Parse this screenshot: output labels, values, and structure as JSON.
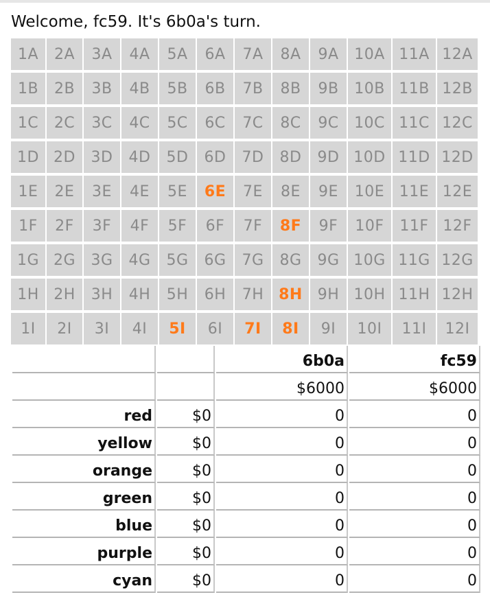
{
  "header": {
    "welcome": "Welcome, fc59. It's 6b0a's turn."
  },
  "board": {
    "rows": [
      [
        "1A",
        "2A",
        "3A",
        "4A",
        "5A",
        "6A",
        "7A",
        "8A",
        "9A",
        "10A",
        "11A",
        "12A"
      ],
      [
        "1B",
        "2B",
        "3B",
        "4B",
        "5B",
        "6B",
        "7B",
        "8B",
        "9B",
        "10B",
        "11B",
        "12B"
      ],
      [
        "1C",
        "2C",
        "3C",
        "4C",
        "5C",
        "6C",
        "7C",
        "8C",
        "9C",
        "10C",
        "11C",
        "12C"
      ],
      [
        "1D",
        "2D",
        "3D",
        "4D",
        "5D",
        "6D",
        "7D",
        "8D",
        "9D",
        "10D",
        "11D",
        "12D"
      ],
      [
        "1E",
        "2E",
        "3E",
        "4E",
        "5E",
        "6E",
        "7E",
        "8E",
        "9E",
        "10E",
        "11E",
        "12E"
      ],
      [
        "1F",
        "2F",
        "3F",
        "4F",
        "5F",
        "6F",
        "7F",
        "8F",
        "9F",
        "10F",
        "11F",
        "12F"
      ],
      [
        "1G",
        "2G",
        "3G",
        "4G",
        "5G",
        "6G",
        "7G",
        "8G",
        "9G",
        "10G",
        "11G",
        "12G"
      ],
      [
        "1H",
        "2H",
        "3H",
        "4H",
        "5H",
        "6H",
        "7H",
        "8H",
        "9H",
        "10H",
        "11H",
        "12H"
      ],
      [
        "1I",
        "2I",
        "3I",
        "4I",
        "5I",
        "6I",
        "7I",
        "8I",
        "9I",
        "10I",
        "11I",
        "12I"
      ]
    ],
    "highlighted": [
      "6E",
      "8F",
      "8H",
      "5I",
      "7I",
      "8I"
    ],
    "colors": {
      "cell_bg": "#d6d6d6",
      "cell_text": "#8a8a8a",
      "highlight_text": "#ff7a1a"
    }
  },
  "stats": {
    "players": [
      "6b0a",
      "fc59"
    ],
    "cash": [
      "$6000",
      "$6000"
    ],
    "companies": [
      {
        "name": "red",
        "price": "$0",
        "holdings": [
          "0",
          "0"
        ]
      },
      {
        "name": "yellow",
        "price": "$0",
        "holdings": [
          "0",
          "0"
        ]
      },
      {
        "name": "orange",
        "price": "$0",
        "holdings": [
          "0",
          "0"
        ]
      },
      {
        "name": "green",
        "price": "$0",
        "holdings": [
          "0",
          "0"
        ]
      },
      {
        "name": "blue",
        "price": "$0",
        "holdings": [
          "0",
          "0"
        ]
      },
      {
        "name": "purple",
        "price": "$0",
        "holdings": [
          "0",
          "0"
        ]
      },
      {
        "name": "cyan",
        "price": "$0",
        "holdings": [
          "0",
          "0"
        ]
      }
    ]
  }
}
